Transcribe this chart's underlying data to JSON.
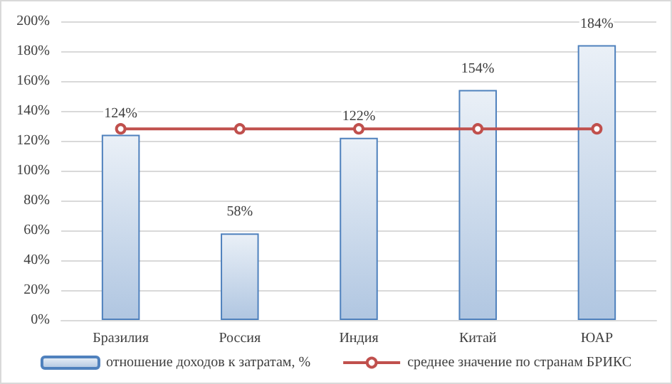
{
  "chart_data": {
    "type": "bar",
    "categories": [
      "Бразилия",
      "Россия",
      "Индия",
      "Китай",
      "ЮАР"
    ],
    "series": [
      {
        "name": "отношение доходов к затратам, %",
        "type": "bar",
        "color": "#4f81bd",
        "values": [
          124,
          58,
          122,
          154,
          184
        ],
        "value_labels": [
          "124%",
          "58%",
          "122%",
          "154%",
          "184%"
        ]
      },
      {
        "name": "среднее значение по странам БРИКС",
        "type": "line",
        "color": "#c0504d",
        "values": [
          128,
          128,
          128,
          128,
          128
        ],
        "marker": "circle"
      }
    ],
    "ylim": [
      0,
      200
    ],
    "yticks": [
      {
        "value": 0,
        "label": "0%"
      },
      {
        "value": 20,
        "label": "20%"
      },
      {
        "value": 40,
        "label": "40%"
      },
      {
        "value": 60,
        "label": "60%"
      },
      {
        "value": 80,
        "label": "80%"
      },
      {
        "value": 100,
        "label": "100%"
      },
      {
        "value": 120,
        "label": "120%"
      },
      {
        "value": 140,
        "label": "140%"
      },
      {
        "value": 160,
        "label": "160%"
      },
      {
        "value": 180,
        "label": "180%"
      },
      {
        "value": 200,
        "label": "200%"
      }
    ],
    "grid": "y",
    "legend": "bottom"
  }
}
